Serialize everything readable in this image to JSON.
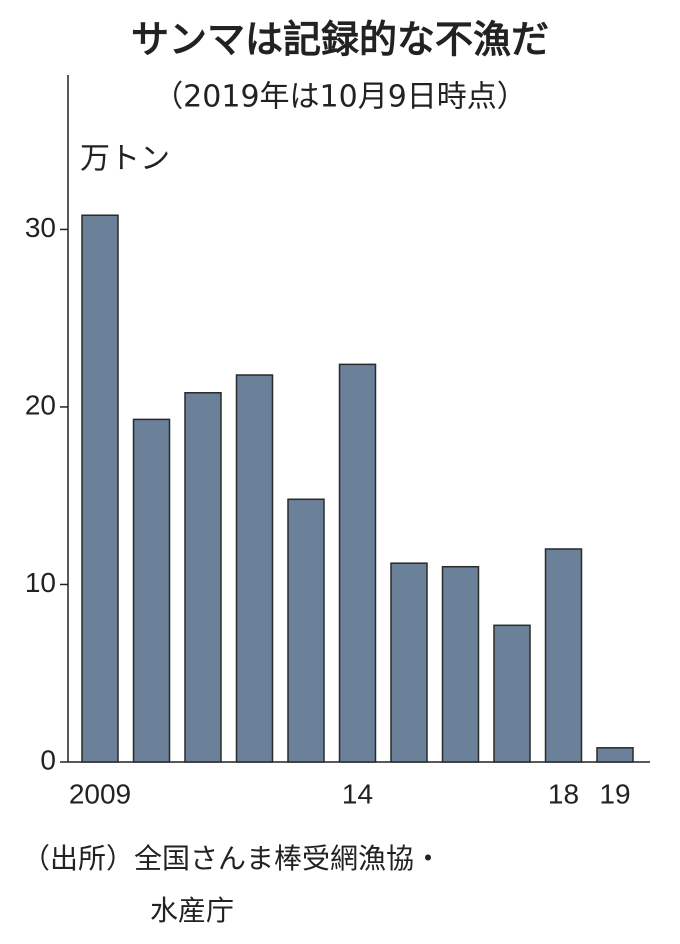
{
  "chart_data": {
    "type": "bar",
    "title": "サンマは記録的な不漁だ",
    "subtitle": "（2019年は10月9日時点）",
    "y_label": "万トン",
    "categories": [
      "2009",
      null,
      null,
      null,
      null,
      "14",
      null,
      null,
      null,
      "18",
      "19"
    ],
    "values": [
      30.8,
      19.3,
      20.8,
      21.8,
      14.8,
      22.4,
      11.2,
      11.0,
      7.7,
      12.0,
      0.8
    ],
    "color": "#6b8099",
    "ylim": [
      0,
      38.7
    ],
    "yticks": [
      0,
      10,
      20,
      30
    ],
    "source": [
      "（出所）全国さんま棒受網漁協・",
      "水産庁"
    ]
  }
}
